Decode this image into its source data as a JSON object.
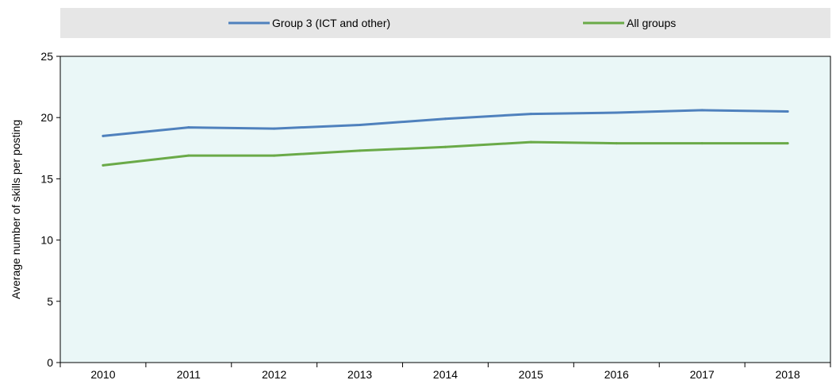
{
  "chart_data": {
    "type": "line",
    "categories": [
      "2010",
      "2011",
      "2012",
      "2013",
      "2014",
      "2015",
      "2016",
      "2017",
      "2018"
    ],
    "series": [
      {
        "name": "Group 3 (ICT and other)",
        "color": "#4f81bd",
        "values": [
          18.5,
          19.2,
          19.1,
          19.4,
          19.9,
          20.3,
          20.4,
          20.6,
          20.5
        ]
      },
      {
        "name": "All groups",
        "color": "#6aaa48",
        "values": [
          16.1,
          16.9,
          16.9,
          17.3,
          17.6,
          18.0,
          17.9,
          17.9,
          17.9
        ]
      }
    ],
    "title": "",
    "xlabel": "",
    "ylabel": "Average number of skills per posting",
    "ylim": [
      0,
      25
    ],
    "yticks": [
      "0",
      "5",
      "10",
      "15",
      "20",
      "25"
    ],
    "grid": false,
    "legend_position": "top",
    "plot_background": "#eaf7f7",
    "legend_background": "#e6e6e6"
  }
}
